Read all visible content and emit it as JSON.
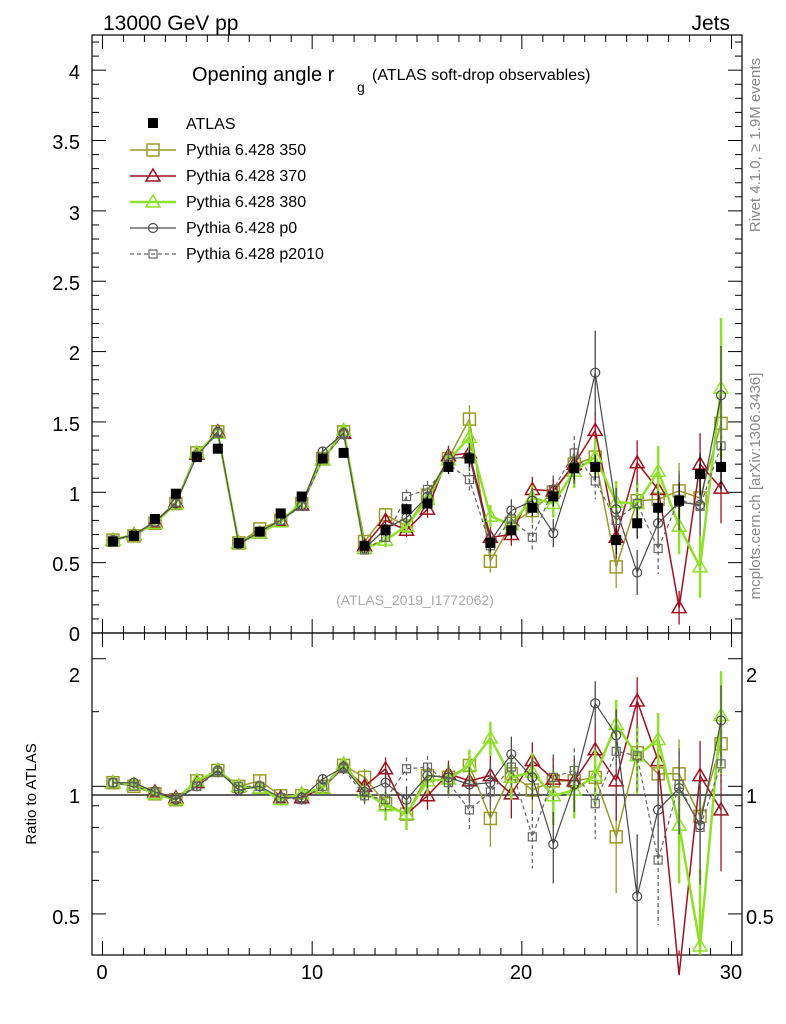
{
  "header": {
    "energy": "13000 GeV pp",
    "category": "Jets"
  },
  "side": {
    "rivet": "Rivet 4.1.0, ≥ 1.9M events",
    "mcplots": "mcplots.cern.ch [arXiv:1306.3436]"
  },
  "chart_data": {
    "type": "line",
    "title_main": "Opening angle r",
    "title_sub": "g",
    "title_note": "(ATLAS soft-drop observables)",
    "analysis_id": "(ATLAS_2019_I1772062)",
    "xlabel": "",
    "ylabel_main": "",
    "ylabel_ratio": "Ratio to ATLAS",
    "xlim": [
      -0.5,
      30.5
    ],
    "ylim_main": [
      0,
      4.25
    ],
    "ylim_ratio": [
      0.4,
      2.3
    ],
    "x_ticks": [
      "0",
      "10",
      "20",
      "30"
    ],
    "y_ticks_main": [
      "0",
      "0.5",
      "1",
      "1.5",
      "2",
      "2.5",
      "3",
      "3.5",
      "4"
    ],
    "y_ticks_ratio": [
      "0.5",
      "1",
      "2"
    ],
    "x": [
      0.5,
      1.5,
      2.5,
      3.5,
      4.5,
      5.5,
      6.5,
      7.5,
      8.5,
      9.5,
      10.5,
      11.5,
      12.5,
      13.5,
      14.5,
      15.5,
      16.5,
      17.5,
      18.5,
      19.5,
      20.5,
      21.5,
      22.5,
      23.5,
      24.5,
      25.5,
      26.5,
      27.5,
      28.5,
      29.5
    ],
    "data": {
      "name": "ATLAS",
      "values": [
        0.65,
        0.69,
        0.81,
        0.99,
        1.25,
        1.31,
        0.64,
        0.72,
        0.85,
        0.97,
        1.24,
        1.28,
        0.62,
        0.73,
        0.88,
        0.92,
        1.18,
        1.24,
        0.64,
        0.73,
        0.89,
        0.97,
        1.17,
        1.18,
        0.66,
        0.78,
        0.89,
        0.94,
        1.13,
        1.18
      ],
      "errors": [
        0.02,
        0.02,
        0.02,
        0.02,
        0.02,
        0.02,
        0.02,
        0.02,
        0.02,
        0.03,
        0.03,
        0.03,
        0.04,
        0.04,
        0.04,
        0.05,
        0.05,
        0.06,
        0.06,
        0.06,
        0.06,
        0.07,
        0.08,
        0.09,
        0.1,
        0.11,
        0.12,
        0.13,
        0.15,
        0.17
      ]
    },
    "series": [
      {
        "name": "Pythia 6.428 350",
        "color": "#9a9a28",
        "marker": "square",
        "dash": "",
        "values": [
          0.66,
          0.69,
          0.78,
          0.92,
          1.28,
          1.43,
          0.64,
          0.74,
          0.8,
          0.92,
          1.24,
          1.43,
          0.65,
          0.84,
          0.76,
          0.98,
          1.24,
          1.52,
          0.51,
          0.78,
          0.87,
          1.0,
          1.2,
          1.25,
          0.47,
          0.94,
          0.95,
          1.01,
          0.96,
          1.49
        ],
        "errors": [
          0.01,
          0.01,
          0.01,
          0.02,
          0.02,
          0.03,
          0.01,
          0.02,
          0.02,
          0.03,
          0.03,
          0.04,
          0.03,
          0.05,
          0.05,
          0.06,
          0.07,
          0.1,
          0.08,
          0.08,
          0.09,
          0.1,
          0.12,
          0.13,
          0.15,
          0.16,
          0.18,
          0.2,
          0.22,
          0.25
        ],
        "ratio": [
          1.02,
          1.0,
          0.96,
          0.93,
          1.03,
          1.09,
          1.0,
          1.03,
          0.95,
          0.95,
          1.0,
          1.12,
          1.05,
          0.91,
          0.86,
          1.06,
          1.05,
          1.12,
          0.84,
          1.07,
          0.98,
          1.03,
          1.03,
          1.05,
          0.76,
          1.2,
          1.07,
          1.07,
          0.85,
          1.26
        ],
        "ratio_errors": [
          0.02,
          0.02,
          0.02,
          0.02,
          0.02,
          0.03,
          0.02,
          0.03,
          0.03,
          0.03,
          0.03,
          0.04,
          0.05,
          0.07,
          0.07,
          0.07,
          0.08,
          0.1,
          0.12,
          0.12,
          0.12,
          0.14,
          0.14,
          0.16,
          0.2,
          0.22,
          0.2,
          0.22,
          0.22,
          0.25
        ]
      },
      {
        "name": "Pythia 6.428 370",
        "color": "#a01020",
        "marker": "triangle",
        "dash": "",
        "values": [
          0.66,
          0.7,
          0.79,
          0.93,
          1.27,
          1.43,
          0.64,
          0.71,
          0.8,
          0.91,
          1.23,
          1.42,
          0.62,
          0.8,
          0.73,
          0.88,
          1.26,
          1.28,
          0.68,
          0.7,
          1.02,
          1.01,
          1.2,
          1.44,
          0.68,
          1.21,
          1.02,
          0.18,
          1.2,
          1.03
        ],
        "errors": [
          0.01,
          0.01,
          0.01,
          0.02,
          0.02,
          0.03,
          0.01,
          0.02,
          0.02,
          0.03,
          0.03,
          0.04,
          0.03,
          0.05,
          0.05,
          0.06,
          0.07,
          0.1,
          0.08,
          0.08,
          0.09,
          0.1,
          0.12,
          0.13,
          0.15,
          0.16,
          0.18,
          0.12,
          0.22,
          0.25
        ],
        "ratio": [
          1.02,
          1.01,
          0.97,
          0.94,
          1.02,
          1.09,
          1.0,
          0.99,
          0.94,
          0.94,
          0.99,
          1.11,
          1.0,
          1.1,
          0.86,
          0.95,
          1.07,
          1.03,
          1.06,
          0.96,
          1.15,
          1.04,
          1.03,
          1.22,
          1.03,
          1.59,
          1.15,
          0.19,
          1.06,
          0.88
        ],
        "ratio_errors": [
          0.02,
          0.02,
          0.02,
          0.02,
          0.02,
          0.03,
          0.02,
          0.03,
          0.03,
          0.03,
          0.03,
          0.04,
          0.05,
          0.07,
          0.07,
          0.07,
          0.08,
          0.1,
          0.12,
          0.12,
          0.12,
          0.14,
          0.14,
          0.16,
          0.2,
          0.22,
          0.2,
          0.22,
          0.22,
          0.25
        ]
      },
      {
        "name": "Pythia 6.428 380",
        "color": "#8ee02a",
        "marker": "triangle",
        "dash": "",
        "thick": true,
        "values": [
          0.66,
          0.7,
          0.78,
          0.92,
          1.28,
          1.42,
          0.64,
          0.71,
          0.79,
          0.93,
          1.23,
          1.44,
          0.6,
          0.66,
          0.76,
          0.95,
          1.23,
          1.39,
          0.83,
          0.77,
          0.96,
          0.92,
          1.15,
          1.25,
          0.93,
          0.92,
          1.15,
          0.76,
          0.47,
          1.74
        ],
        "errors": [
          0.01,
          0.01,
          0.01,
          0.02,
          0.02,
          0.03,
          0.01,
          0.02,
          0.02,
          0.03,
          0.03,
          0.04,
          0.03,
          0.05,
          0.05,
          0.06,
          0.07,
          0.1,
          0.08,
          0.08,
          0.09,
          0.1,
          0.12,
          0.13,
          0.15,
          0.16,
          0.18,
          0.2,
          0.22,
          0.5
        ],
        "ratio": [
          1.02,
          1.01,
          0.96,
          0.93,
          1.03,
          1.09,
          1.0,
          0.99,
          0.93,
          0.96,
          0.99,
          1.13,
          0.97,
          0.9,
          0.86,
          1.03,
          1.04,
          1.12,
          1.3,
          1.05,
          1.08,
          0.95,
          0.98,
          1.06,
          1.4,
          1.18,
          1.29,
          0.81,
          0.42,
          1.47
        ],
        "ratio_errors": [
          0.02,
          0.02,
          0.02,
          0.02,
          0.02,
          0.03,
          0.02,
          0.03,
          0.03,
          0.03,
          0.03,
          0.04,
          0.05,
          0.07,
          0.07,
          0.07,
          0.08,
          0.1,
          0.12,
          0.12,
          0.12,
          0.14,
          0.14,
          0.16,
          0.2,
          0.22,
          0.2,
          0.22,
          0.22,
          0.4
        ]
      },
      {
        "name": "Pythia 6.428 p0",
        "color": "#4a4a4a",
        "marker": "circle",
        "dash": "",
        "thin": true,
        "values": [
          0.66,
          0.7,
          0.79,
          0.92,
          1.26,
          1.43,
          0.63,
          0.72,
          0.8,
          0.91,
          1.29,
          1.42,
          0.6,
          0.74,
          0.82,
          0.97,
          1.24,
          1.25,
          0.65,
          0.87,
          0.94,
          0.71,
          1.18,
          1.85,
          0.88,
          0.43,
          0.78,
          0.93,
          0.91,
          1.69
        ],
        "errors": [
          0.01,
          0.01,
          0.01,
          0.02,
          0.02,
          0.03,
          0.01,
          0.02,
          0.02,
          0.03,
          0.03,
          0.04,
          0.03,
          0.05,
          0.05,
          0.06,
          0.07,
          0.1,
          0.08,
          0.08,
          0.09,
          0.1,
          0.12,
          0.3,
          0.15,
          0.16,
          0.18,
          0.2,
          0.22,
          0.35
        ],
        "ratio": [
          1.02,
          1.02,
          0.97,
          0.93,
          1.0,
          1.09,
          0.98,
          1.0,
          0.94,
          0.94,
          1.04,
          1.11,
          0.97,
          1.02,
          0.93,
          1.06,
          1.05,
          1.01,
          1.02,
          1.19,
          1.05,
          0.73,
          1.01,
          1.57,
          1.32,
          0.55,
          0.88,
          0.99,
          0.81,
          1.43
        ],
        "ratio_errors": [
          0.02,
          0.02,
          0.02,
          0.02,
          0.02,
          0.03,
          0.02,
          0.03,
          0.03,
          0.03,
          0.03,
          0.04,
          0.05,
          0.07,
          0.07,
          0.07,
          0.08,
          0.1,
          0.12,
          0.12,
          0.12,
          0.14,
          0.14,
          0.2,
          0.2,
          0.22,
          0.2,
          0.22,
          0.22,
          0.3
        ]
      },
      {
        "name": "Pythia 6.428 p2010",
        "color": "#666666",
        "marker": "square-small",
        "dash": "4,3",
        "thin": true,
        "values": [
          0.66,
          0.69,
          0.79,
          0.93,
          1.26,
          1.42,
          0.64,
          0.72,
          0.8,
          0.9,
          1.24,
          1.41,
          0.59,
          0.68,
          0.97,
          1.02,
          1.2,
          1.09,
          0.62,
          0.81,
          0.68,
          1.02,
          1.28,
          1.08,
          0.8,
          0.92,
          0.6,
          0.95,
          0.9,
          1.33
        ],
        "errors": [
          0.01,
          0.01,
          0.01,
          0.02,
          0.02,
          0.03,
          0.01,
          0.02,
          0.02,
          0.03,
          0.03,
          0.04,
          0.03,
          0.05,
          0.05,
          0.06,
          0.07,
          0.1,
          0.08,
          0.08,
          0.09,
          0.1,
          0.12,
          0.13,
          0.15,
          0.16,
          0.18,
          0.2,
          0.22,
          0.25
        ],
        "ratio": [
          1.02,
          1.0,
          0.97,
          0.94,
          1.0,
          1.08,
          1.0,
          1.0,
          0.94,
          0.93,
          1.0,
          1.1,
          0.95,
          0.93,
          1.1,
          1.11,
          1.02,
          0.88,
          0.97,
          1.11,
          0.76,
          1.05,
          1.09,
          0.91,
          1.21,
          1.18,
          0.67,
          1.01,
          0.8,
          1.13
        ],
        "ratio_errors": [
          0.02,
          0.02,
          0.02,
          0.02,
          0.02,
          0.03,
          0.02,
          0.03,
          0.03,
          0.03,
          0.03,
          0.04,
          0.05,
          0.07,
          0.07,
          0.07,
          0.08,
          0.1,
          0.12,
          0.12,
          0.12,
          0.14,
          0.14,
          0.16,
          0.2,
          0.22,
          0.2,
          0.22,
          0.22,
          0.25
        ]
      }
    ]
  }
}
